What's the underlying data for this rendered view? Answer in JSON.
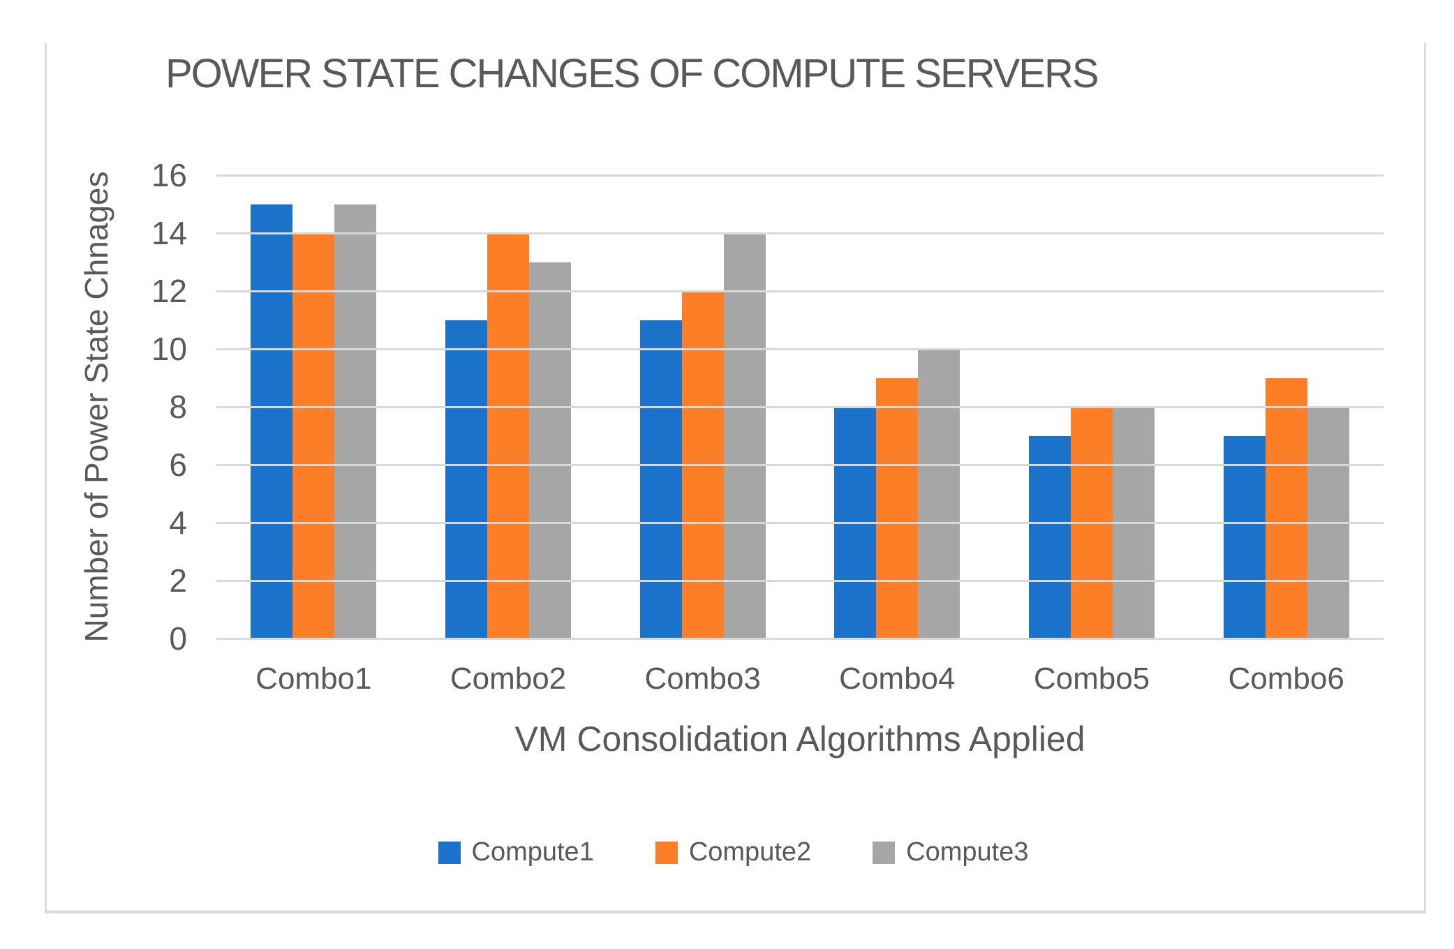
{
  "figure": {
    "background": "#ffffff",
    "frame_color": "#dcdcdc",
    "text_color": "#595959"
  },
  "chart_data": {
    "type": "bar",
    "title": "POWER STATE CHANGES OF COMPUTE SERVERS",
    "xlabel": "VM Consolidation Algorithms Applied",
    "ylabel": "Number of Power State Chnages",
    "categories": [
      "Combo1",
      "Combo2",
      "Combo3",
      "Combo4",
      "Combo5",
      "Combo6"
    ],
    "series": [
      {
        "name": "Compute1",
        "color": "#1b72cb",
        "values": [
          15,
          11,
          11,
          8,
          7,
          7
        ]
      },
      {
        "name": "Compute2",
        "color": "#fc7e27",
        "values": [
          14,
          14,
          12,
          9,
          8,
          9
        ]
      },
      {
        "name": "Compute3",
        "color": "#a6a6a6",
        "values": [
          15,
          13,
          14,
          10,
          8,
          8
        ]
      }
    ],
    "ylim": [
      0,
      16
    ],
    "ytick_step": 2,
    "yticks": [
      0,
      2,
      4,
      6,
      8,
      10,
      12,
      14,
      16
    ],
    "grid": "horizontal",
    "gridline_color": "#d9d9d9",
    "legend_position": "bottom"
  }
}
